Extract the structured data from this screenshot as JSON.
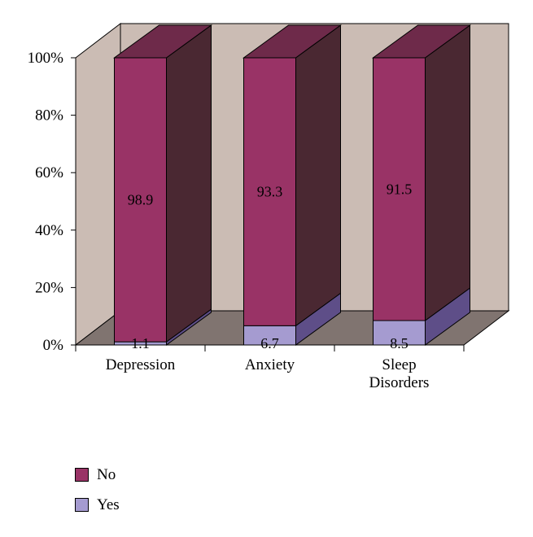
{
  "chart_data": {
    "type": "bar",
    "stacked": true,
    "percent_stacked": true,
    "three_d": true,
    "categories": [
      "Depression",
      "Anxiety",
      "Sleep Disorders"
    ],
    "series": [
      {
        "name": "Yes",
        "values": [
          1.1,
          6.7,
          8.5
        ],
        "color": "#a59bd0"
      },
      {
        "name": "No",
        "values": [
          98.9,
          93.3,
          91.5
        ],
        "color": "#993366"
      }
    ],
    "y_ticks": [
      "0%",
      "20%",
      "40%",
      "60%",
      "80%",
      "100%"
    ],
    "ylim": [
      0,
      100
    ],
    "legend_position": "bottom-left"
  }
}
